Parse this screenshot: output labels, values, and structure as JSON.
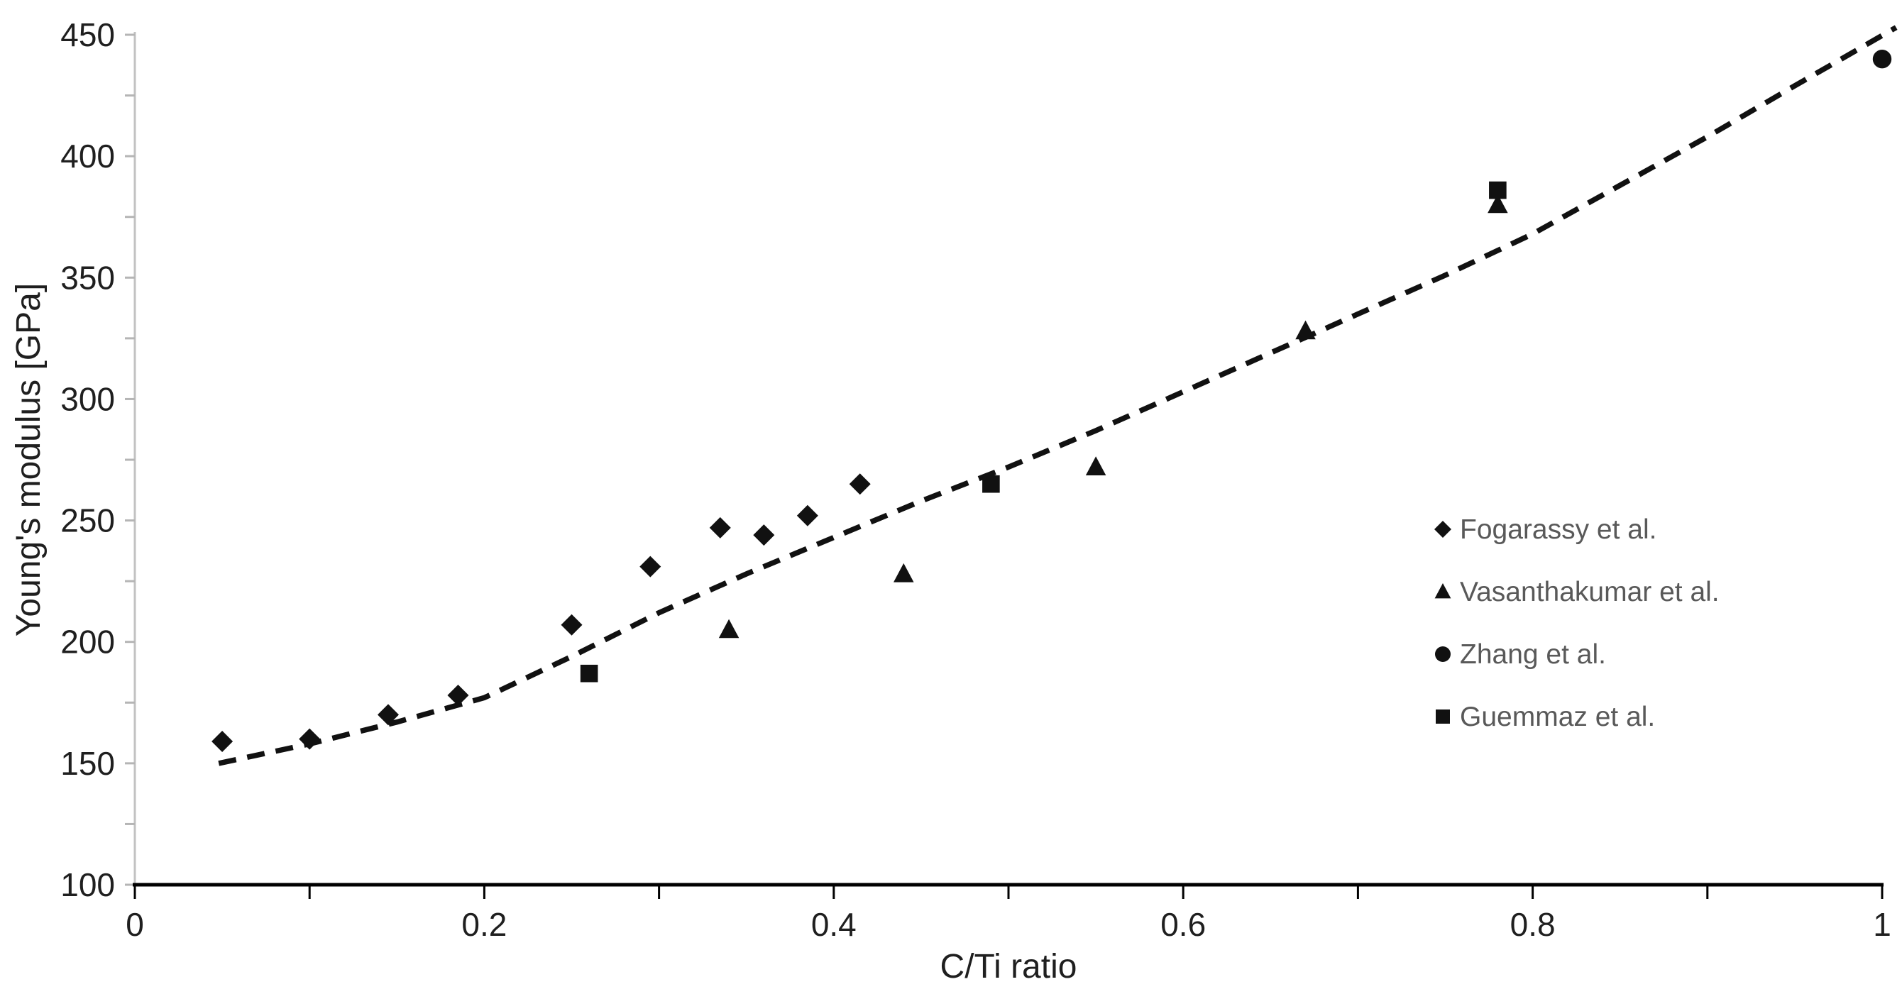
{
  "chart_data": {
    "type": "scatter",
    "title": "",
    "xlabel": "C/Ti ratio",
    "ylabel": "Young's modulus [GPa]",
    "xlim": [
      0,
      1
    ],
    "ylim": [
      100,
      450
    ],
    "grid": false,
    "legend_position": "right-middle",
    "x_axis": {
      "title": "C/Ti ratio",
      "min": 0,
      "max": 1,
      "tick_step": 0.1,
      "labels": [
        {
          "value": 0,
          "text": "0"
        },
        {
          "value": 0.2,
          "text": "0.2"
        },
        {
          "value": 0.4,
          "text": "0.4"
        },
        {
          "value": 0.6,
          "text": "0.6"
        },
        {
          "value": 0.8,
          "text": "0.8"
        },
        {
          "value": 1,
          "text": "1"
        }
      ]
    },
    "y_axis": {
      "title": "Young's modulus [GPa]",
      "min": 100,
      "max": 450,
      "tick_step": 25,
      "labels": [
        {
          "value": 100,
          "text": "100"
        },
        {
          "value": 150,
          "text": "150"
        },
        {
          "value": 200,
          "text": "200"
        },
        {
          "value": 250,
          "text": "250"
        },
        {
          "value": 300,
          "text": "300"
        },
        {
          "value": 350,
          "text": "350"
        },
        {
          "value": 400,
          "text": "400"
        },
        {
          "value": 450,
          "text": "450"
        }
      ]
    },
    "series": [
      {
        "name": "Fogarassy et al.",
        "marker": "diamond",
        "points": [
          [
            0.05,
            159
          ],
          [
            0.1,
            160
          ],
          [
            0.145,
            170
          ],
          [
            0.185,
            178
          ],
          [
            0.25,
            207
          ],
          [
            0.295,
            231
          ],
          [
            0.335,
            247
          ],
          [
            0.36,
            244
          ],
          [
            0.385,
            252
          ],
          [
            0.415,
            265
          ]
        ]
      },
      {
        "name": "Vasanthakumar et al.",
        "marker": "triangle",
        "points": [
          [
            0.34,
            205
          ],
          [
            0.44,
            228
          ],
          [
            0.55,
            272
          ],
          [
            0.67,
            328
          ],
          [
            0.78,
            380
          ]
        ]
      },
      {
        "name": "Zhang et al.",
        "marker": "circle",
        "points": [
          [
            1.0,
            440
          ]
        ]
      },
      {
        "name": "Guemmaz et al.",
        "marker": "square",
        "points": [
          [
            0.26,
            187
          ],
          [
            0.49,
            265
          ],
          [
            0.78,
            386
          ]
        ]
      }
    ],
    "trendline": {
      "style": "dashed",
      "points": [
        [
          0.048,
          150
        ],
        [
          0.1,
          158
        ],
        [
          0.15,
          167
        ],
        [
          0.2,
          177
        ],
        [
          0.25,
          194
        ],
        [
          0.3,
          212
        ],
        [
          0.35,
          228
        ],
        [
          0.4,
          243
        ],
        [
          0.45,
          258
        ],
        [
          0.5,
          272
        ],
        [
          0.55,
          287
        ],
        [
          0.6,
          303
        ],
        [
          0.65,
          319
        ],
        [
          0.7,
          335
        ],
        [
          0.75,
          351
        ],
        [
          0.8,
          368
        ],
        [
          0.85,
          388
        ],
        [
          0.9,
          408
        ],
        [
          0.95,
          429
        ],
        [
          1.008,
          453
        ]
      ]
    }
  },
  "colors": {
    "marker": "#111111",
    "trendline": "#111111",
    "x_axis_line": "#000000",
    "y_axis_line": "#c2c2c2",
    "y_tick": "#b5b5b5",
    "tick_text": "#1f1f1f",
    "legend_text": "#595959",
    "background": "#ffffff"
  }
}
